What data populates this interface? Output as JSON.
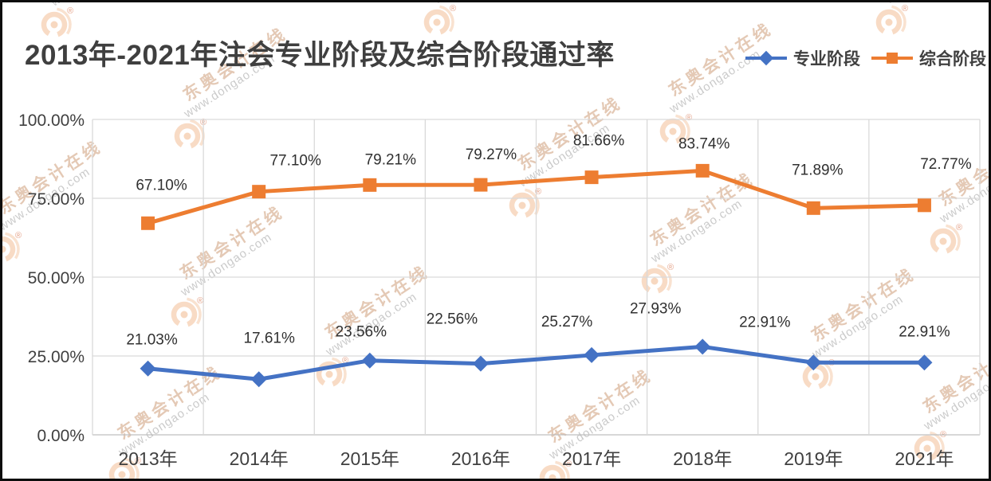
{
  "title": "2013年-2021年注会专业阶段及综合阶段通过率",
  "legend": [
    {
      "label": "专业阶段",
      "marker": "diamond",
      "color": "#4472C4"
    },
    {
      "label": "综合阶段",
      "marker": "square",
      "color": "#ED7D31"
    }
  ],
  "watermark": {
    "brand": "东奥会计在线",
    "url": "www.dongao.com",
    "registered": "®"
  },
  "colors": {
    "accent_blue": "#4472C4",
    "accent_orange": "#ED7D31",
    "grid": "#D9D9D9",
    "axis_line": "#BFBFBF",
    "axis_text": "#404040",
    "title_text": "#3F3F3F",
    "watermark_logo": "#F2BE96",
    "watermark_registered": "#D97A55",
    "background": "#FFFFFF",
    "border": "#0D0D0D"
  },
  "chart_data": {
    "type": "line",
    "title": "2013年-2021年注会专业阶段及综合阶段通过率",
    "categories": [
      "2013年",
      "2014年",
      "2015年",
      "2016年",
      "2017年",
      "2018年",
      "2019年",
      "2021年"
    ],
    "series": [
      {
        "name": "专业阶段",
        "marker": "diamond",
        "color": "#4472C4",
        "values": [
          21.03,
          17.61,
          23.56,
          22.56,
          25.27,
          27.93,
          22.91,
          22.91
        ],
        "data_labels": [
          "21.03%",
          "17.61%",
          "23.56%",
          "22.56%",
          "25.27%",
          "27.93%",
          "22.91%",
          "22.91%"
        ]
      },
      {
        "name": "综合阶段",
        "marker": "square",
        "color": "#ED7D31",
        "values": [
          67.1,
          77.1,
          79.21,
          79.27,
          81.66,
          83.74,
          71.89,
          72.77
        ],
        "data_labels": [
          "67.10%",
          "77.10%",
          "79.21%",
          "79.27%",
          "81.66%",
          "83.74%",
          "71.89%",
          "72.77%"
        ]
      }
    ],
    "ylim": [
      0,
      100
    ],
    "yticks": [
      {
        "value": 0,
        "label": "0.00%"
      },
      {
        "value": 25,
        "label": "25.00%"
      },
      {
        "value": 50,
        "label": "50.00%"
      },
      {
        "value": 75,
        "label": "75.00%"
      },
      {
        "value": 100,
        "label": "100.00%"
      }
    ],
    "grid": true,
    "legend_position": "top-right",
    "xlabel": "",
    "ylabel": ""
  }
}
